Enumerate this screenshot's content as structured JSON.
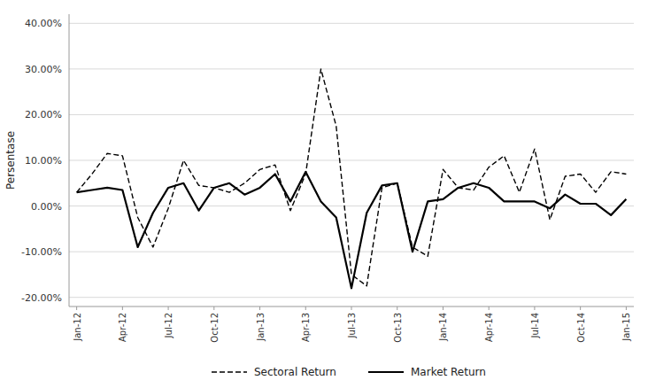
{
  "chart_data": {
    "type": "line",
    "y_label": "Persentase",
    "categories": [
      "Jan-12",
      null,
      null,
      "Apr-12",
      null,
      null,
      "Jul-12",
      null,
      null,
      "Oct-12",
      null,
      null,
      "Jan-13",
      null,
      null,
      "Apr-13",
      null,
      null,
      "Jul-13",
      null,
      null,
      "Oct-13",
      null,
      null,
      "Jan-14",
      null,
      null,
      "Apr-14",
      null,
      null,
      "Jul-14",
      null,
      null,
      "Oct-14",
      null,
      null,
      "Jan-15"
    ],
    "series": [
      {
        "name": "Sectoral Return",
        "color": "#000000",
        "line_style": "dashed",
        "values": [
          0.03,
          0.07,
          0.115,
          0.11,
          -0.025,
          -0.09,
          -0.005,
          0.1,
          0.045,
          0.04,
          0.03,
          0.05,
          0.08,
          0.09,
          -0.01,
          0.07,
          0.3,
          0.175,
          -0.15,
          -0.175,
          0.04,
          0.05,
          -0.09,
          -0.11,
          0.08,
          0.04,
          0.035,
          0.085,
          0.11,
          0.03,
          0.125,
          -0.03,
          0.065,
          0.07,
          0.03,
          0.075,
          0.07
        ]
      },
      {
        "name": "Market Return",
        "color": "#000000",
        "line_style": "solid",
        "values": [
          0.03,
          0.035,
          0.04,
          0.035,
          -0.09,
          -0.015,
          0.04,
          0.05,
          -0.01,
          0.04,
          0.05,
          0.025,
          0.04,
          0.07,
          0.01,
          0.075,
          0.01,
          -0.025,
          -0.18,
          -0.015,
          0.045,
          0.05,
          -0.1,
          0.01,
          0.015,
          0.04,
          0.05,
          0.04,
          0.01,
          0.01,
          0.01,
          -0.005,
          0.025,
          0.005,
          0.005,
          -0.02,
          0.015
        ]
      }
    ],
    "ylim": [
      -0.22,
      0.42
    ],
    "yticks": [
      {
        "value": -0.2,
        "label": "-20.00%"
      },
      {
        "value": -0.1,
        "label": "-10.00%"
      },
      {
        "value": 0.0,
        "label": "0.00%"
      },
      {
        "value": 0.1,
        "label": "10.00%"
      },
      {
        "value": 0.2,
        "label": "20.00%"
      },
      {
        "value": 0.3,
        "label": "30.00%"
      },
      {
        "value": 0.4,
        "label": "40.00%"
      }
    ],
    "grid": true,
    "legend": "bottom"
  }
}
